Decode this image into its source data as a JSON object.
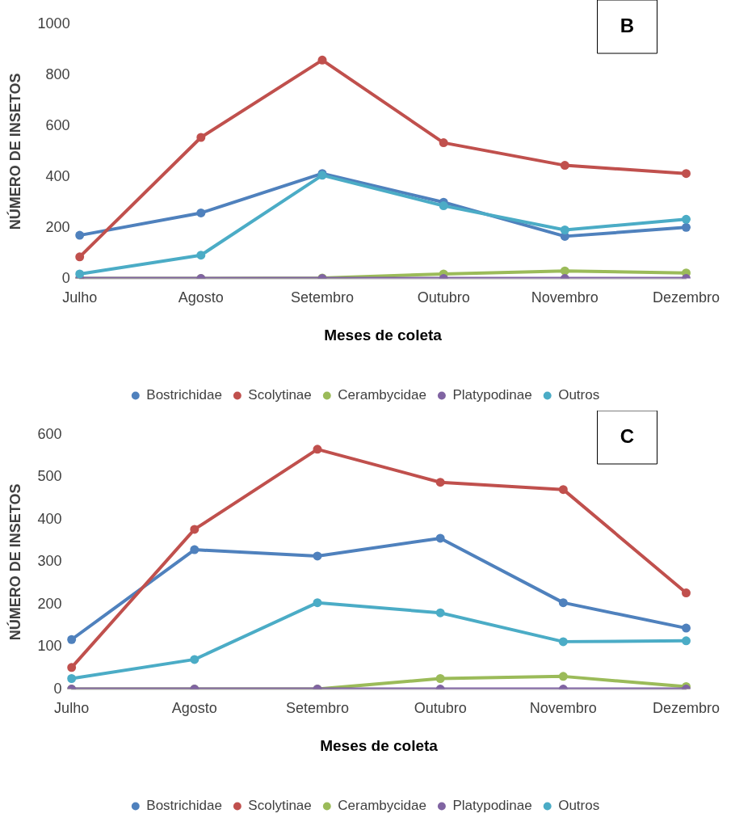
{
  "chart_data": [
    {
      "type": "line",
      "title": "B",
      "xlabel": "Meses de coleta",
      "ylabel": "NÚMERO DE INSETOS",
      "categories": [
        "Julho",
        "Agosto",
        "Setembro",
        "Outubro",
        "Novembro",
        "Dezembro"
      ],
      "ylim": [
        0,
        1000
      ],
      "yticks": [
        0,
        200,
        400,
        600,
        800,
        1000
      ],
      "grid": false,
      "legend": "bottom",
      "marker": "circle",
      "line_style": "solid",
      "series": [
        {
          "name": "Bostrichidae",
          "color": "#4f81bd",
          "values": [
            170,
            258,
            413,
            300,
            166,
            201
          ]
        },
        {
          "name": "Scolytinae",
          "color": "#c0504d",
          "values": [
            85,
            555,
            859,
            534,
            445,
            413
          ]
        },
        {
          "name": "Cerambycidae",
          "color": "#9bbb59",
          "values": [
            0,
            0,
            2,
            18,
            30,
            22
          ]
        },
        {
          "name": "Platypodinae",
          "color": "#8064a2",
          "values": [
            0,
            0,
            0,
            0,
            0,
            0
          ]
        },
        {
          "name": "Outros",
          "color": "#4bacc6",
          "values": [
            18,
            92,
            406,
            286,
            191,
            233
          ]
        }
      ]
    },
    {
      "type": "line",
      "title": "C",
      "xlabel": "Meses de coleta",
      "ylabel": "NÚMERO DE INSETOS",
      "categories": [
        "Julho",
        "Agosto",
        "Setembro",
        "Outubro",
        "Novembro",
        "Dezembro"
      ],
      "ylim": [
        0,
        600
      ],
      "yticks": [
        0,
        100,
        200,
        300,
        400,
        500,
        600
      ],
      "grid": false,
      "legend": "bottom",
      "marker": "circle",
      "line_style": "solid",
      "series": [
        {
          "name": "Bostrichidae",
          "color": "#4f81bd",
          "values": [
            117,
            329,
            314,
            356,
            204,
            144
          ]
        },
        {
          "name": "Scolytinae",
          "color": "#c0504d",
          "values": [
            51,
            377,
            566,
            488,
            471,
            227
          ]
        },
        {
          "name": "Cerambycidae",
          "color": "#9bbb59",
          "values": [
            0,
            0,
            0,
            25,
            30,
            6
          ]
        },
        {
          "name": "Platypodinae",
          "color": "#8064a2",
          "values": [
            0,
            0,
            0,
            0,
            0,
            0
          ]
        },
        {
          "name": "Outros",
          "color": "#4bacc6",
          "values": [
            25,
            70,
            204,
            180,
            112,
            114
          ]
        }
      ]
    }
  ]
}
